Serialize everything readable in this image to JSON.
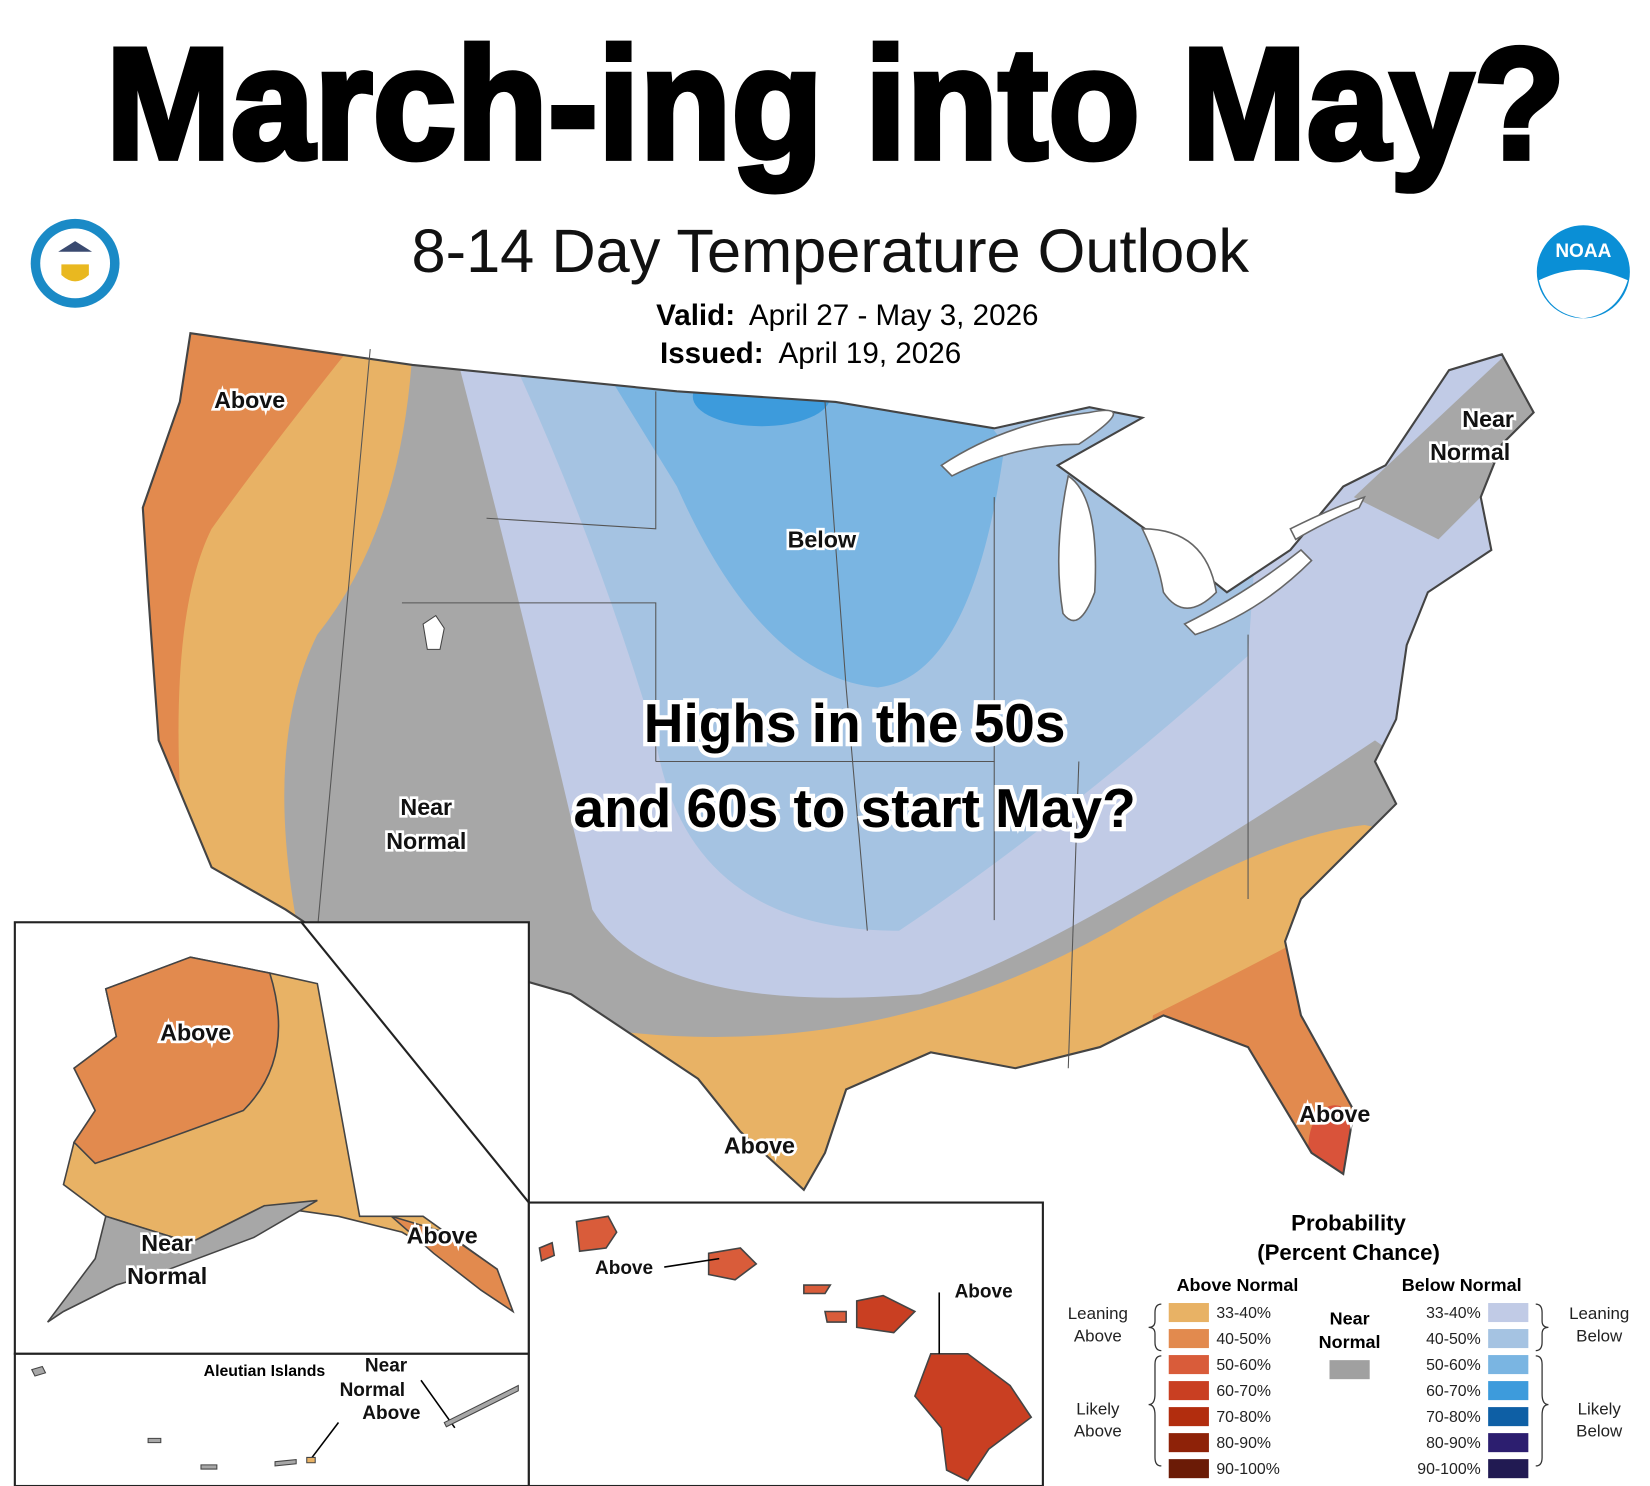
{
  "header": {
    "title": "March-ing into May?",
    "subtitle": "8-14 Day Temperature Outlook",
    "valid_label": "Valid:",
    "valid": "April 27 - May 3, 2026",
    "issued_label": "Issued:",
    "issued": "April 19, 2026",
    "noaa_logo": "NOAA"
  },
  "map": {
    "labels": [
      [
        "Above"
      ],
      [
        "Near",
        "Normal"
      ],
      [
        "Below"
      ],
      [
        "Near",
        "Normal"
      ],
      [
        "Above"
      ],
      [
        "Above"
      ]
    ],
    "annotation": [
      "Highs in the 50s",
      "and 60s to start May?"
    ]
  },
  "alaska": {
    "labels": [
      [
        "Above"
      ],
      [
        "Near",
        "Normal"
      ],
      [
        "Above"
      ]
    ]
  },
  "aleutians": {
    "title": "Aleutian Islands",
    "labels": [
      [
        "Near",
        "Normal",
        "Above"
      ]
    ]
  },
  "hawaii": {
    "labels": [
      [
        "Above"
      ],
      [
        "Above"
      ]
    ]
  },
  "legend": {
    "title": [
      "Probability",
      "(Percent Chance)"
    ],
    "above": {
      "heading": "Above Normal",
      "groups": [
        [
          "Leaning",
          "Above"
        ],
        [
          "Likely",
          "Above"
        ]
      ],
      "items": [
        {
          "label": "33-40%",
          "color": "#e8b265"
        },
        {
          "label": "40-50%",
          "color": "#e28a4e"
        },
        {
          "label": "50-60%",
          "color": "#d95c3a"
        },
        {
          "label": "60-70%",
          "color": "#c93f22"
        },
        {
          "label": "70-80%",
          "color": "#b22d0e"
        },
        {
          "label": "80-90%",
          "color": "#8e2208"
        },
        {
          "label": "90-100%",
          "color": "#6b1b06"
        }
      ]
    },
    "near": {
      "heading": [
        "Near",
        "Normal"
      ],
      "color": "#a0a0a0"
    },
    "below": {
      "heading": "Below Normal",
      "groups": [
        [
          "Leaning",
          "Below"
        ],
        [
          "Likely",
          "Below"
        ]
      ],
      "items": [
        {
          "label": "33-40%",
          "color": "#c1cbe6"
        },
        {
          "label": "40-50%",
          "color": "#a5c3e2"
        },
        {
          "label": "50-60%",
          "color": "#7ab5e2"
        },
        {
          "label": "60-70%",
          "color": "#3d9bdc"
        },
        {
          "label": "70-80%",
          "color": "#0e5fa5"
        },
        {
          "label": "80-90%",
          "color": "#2c1e6f"
        },
        {
          "label": "90-100%",
          "color": "#211a52"
        }
      ]
    }
  }
}
